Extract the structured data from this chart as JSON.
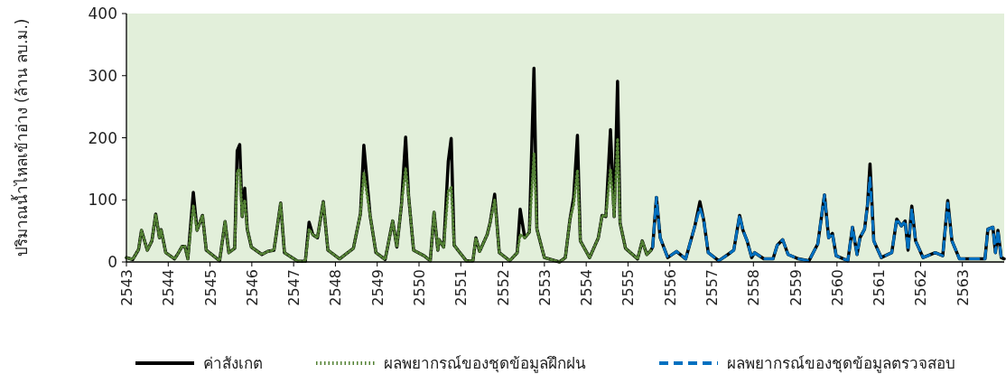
{
  "chart_data": {
    "type": "line",
    "ylabel": "ปริมาณน้ำไหลเข้าอ่าง (ล้าน ลบ.ม.)",
    "xlim": [
      2543,
      2564
    ],
    "xticks": [
      2543,
      2544,
      2545,
      2546,
      2547,
      2548,
      2549,
      2550,
      2551,
      2552,
      2553,
      2554,
      2555,
      2556,
      2557,
      2558,
      2559,
      2560,
      2561,
      2562,
      2563
    ],
    "ylim": [
      0,
      400
    ],
    "yticks": [
      0,
      100,
      200,
      300,
      400
    ],
    "grid": false,
    "legend": "bottom",
    "marker": "none",
    "series": [
      {
        "name": "ค่าสังเกต",
        "color": "#000000",
        "line_style": "solid",
        "x": [
          2543.0,
          2543.15,
          2543.29,
          2543.36,
          2543.5,
          2543.61,
          2543.7,
          2543.79,
          2543.83,
          2543.94,
          2544.15,
          2544.22,
          2544.33,
          2544.4,
          2544.47,
          2544.6,
          2544.69,
          2544.82,
          2544.91,
          2545.23,
          2545.36,
          2545.45,
          2545.59,
          2545.65,
          2545.71,
          2545.77,
          2545.83,
          2545.89,
          2545.99,
          2546.24,
          2546.38,
          2546.53,
          2546.69,
          2546.78,
          2547.1,
          2547.28,
          2547.37,
          2547.46,
          2547.57,
          2547.71,
          2547.82,
          2548.1,
          2548.43,
          2548.6,
          2548.68,
          2548.83,
          2548.97,
          2549.19,
          2549.37,
          2549.47,
          2549.58,
          2549.68,
          2549.75,
          2549.87,
          2550.12,
          2550.27,
          2550.36,
          2550.45,
          2550.48,
          2550.59,
          2550.7,
          2550.77,
          2550.84,
          2551.13,
          2551.29,
          2551.36,
          2551.45,
          2551.63,
          2551.7,
          2551.81,
          2551.92,
          2552.17,
          2552.35,
          2552.42,
          2552.53,
          2552.64,
          2552.75,
          2552.82,
          2553.0,
          2553.36,
          2553.5,
          2553.61,
          2553.7,
          2553.79,
          2553.86,
          2554.08,
          2554.29,
          2554.38,
          2554.47,
          2554.58,
          2554.67,
          2554.75,
          2554.81,
          2554.94,
          2555.23,
          2555.34,
          2555.45,
          2555.55,
          2555.59,
          2555.68,
          2555.77,
          2555.95,
          2556.16,
          2556.38,
          2556.6,
          2556.72,
          2556.81,
          2556.92,
          2557.17,
          2557.39,
          2557.53,
          2557.67,
          2557.75,
          2557.85,
          2557.96,
          2558.03,
          2558.25,
          2558.47,
          2558.57,
          2558.7,
          2558.83,
          2559.08,
          2559.33,
          2559.54,
          2559.7,
          2559.8,
          2559.89,
          2559.98,
          2560.26,
          2560.37,
          2560.48,
          2560.55,
          2560.66,
          2560.73,
          2560.79,
          2560.88,
          2561.06,
          2561.31,
          2561.43,
          2561.54,
          2561.63,
          2561.7,
          2561.79,
          2561.88,
          2562.06,
          2562.35,
          2562.53,
          2562.65,
          2562.75,
          2562.93,
          2563.29,
          2563.54,
          2563.61,
          2563.73,
          2563.79,
          2563.85,
          2563.93,
          2564.0
        ],
        "values": [
          7,
          4,
          20,
          51,
          19,
          34,
          77,
          39,
          52,
          15,
          5,
          12,
          25,
          25,
          5,
          112,
          51,
          75,
          19,
          2,
          65,
          15,
          22,
          179,
          189,
          73,
          119,
          53,
          24,
          12,
          17,
          19,
          95,
          15,
          1,
          1,
          64,
          44,
          39,
          97,
          19,
          5,
          22,
          78,
          188,
          75,
          15,
          4,
          66,
          24,
          92,
          201,
          107,
          19,
          10,
          2,
          80,
          19,
          36,
          24,
          162,
          199,
          27,
          2,
          2,
          39,
          17,
          44,
          63,
          109,
          15,
          2,
          15,
          85,
          39,
          48,
          312,
          53,
          7,
          0,
          7,
          68,
          104,
          204,
          34,
          7,
          39,
          75,
          73,
          213,
          73,
          291,
          63,
          22,
          5,
          34,
          12,
          19,
          24,
          104,
          39,
          7,
          17,
          5,
          58,
          97,
          68,
          15,
          2,
          12,
          19,
          75,
          51,
          34,
          7,
          15,
          5,
          5,
          27,
          36,
          12,
          5,
          2,
          29,
          108,
          39,
          46,
          10,
          2,
          56,
          12,
          39,
          53,
          92,
          158,
          34,
          7,
          15,
          69,
          58,
          66,
          19,
          90,
          34,
          7,
          15,
          10,
          99,
          34,
          5,
          5,
          5,
          53,
          56,
          15,
          51,
          7,
          5
        ]
      },
      {
        "name": "ผลพยากรณ์ของชุดข้อมูลฝึกฝน",
        "color": "#548235",
        "line_style": "dotted",
        "x": [
          2543.0,
          2543.15,
          2543.29,
          2543.36,
          2543.5,
          2543.61,
          2543.7,
          2543.79,
          2543.83,
          2543.94,
          2544.15,
          2544.22,
          2544.33,
          2544.4,
          2544.47,
          2544.6,
          2544.69,
          2544.82,
          2544.91,
          2545.23,
          2545.36,
          2545.45,
          2545.59,
          2545.65,
          2545.71,
          2545.77,
          2545.83,
          2545.89,
          2545.99,
          2546.24,
          2546.38,
          2546.53,
          2546.69,
          2546.78,
          2547.1,
          2547.28,
          2547.37,
          2547.46,
          2547.57,
          2547.71,
          2547.82,
          2548.1,
          2548.43,
          2548.6,
          2548.68,
          2548.83,
          2548.97,
          2549.19,
          2549.37,
          2549.47,
          2549.58,
          2549.68,
          2549.75,
          2549.87,
          2550.12,
          2550.27,
          2550.36,
          2550.45,
          2550.48,
          2550.59,
          2550.7,
          2550.77,
          2550.84,
          2551.13,
          2551.29,
          2551.36,
          2551.45,
          2551.63,
          2551.7,
          2551.81,
          2551.92,
          2552.17,
          2552.35,
          2552.42,
          2552.53,
          2552.64,
          2552.75,
          2552.82,
          2553.0,
          2553.36,
          2553.5,
          2553.61,
          2553.7,
          2553.79,
          2553.86,
          2554.08,
          2554.29,
          2554.38,
          2554.47,
          2554.58,
          2554.67,
          2554.75,
          2554.81,
          2554.94,
          2555.23,
          2555.34,
          2555.45,
          2555.55
        ],
        "values": [
          7,
          4,
          20,
          51,
          19,
          34,
          77,
          39,
          52,
          15,
          5,
          12,
          25,
          25,
          5,
          92,
          51,
          75,
          19,
          2,
          65,
          15,
          22,
          145,
          150,
          73,
          100,
          53,
          24,
          12,
          17,
          19,
          95,
          15,
          1,
          1,
          53,
          44,
          39,
          97,
          19,
          5,
          22,
          78,
          143,
          75,
          15,
          4,
          66,
          24,
          92,
          150,
          107,
          19,
          10,
          2,
          80,
          19,
          36,
          24,
          114,
          120,
          27,
          2,
          2,
          39,
          17,
          44,
          63,
          100,
          15,
          2,
          15,
          44,
          39,
          48,
          175,
          53,
          7,
          0,
          7,
          68,
          92,
          148,
          34,
          7,
          39,
          75,
          73,
          150,
          73,
          199,
          63,
          22,
          5,
          34,
          12,
          19
        ]
      },
      {
        "name": "ผลพยากรณ์ของชุดข้อมูลตรวจสอบ",
        "color": "#0070c0",
        "line_style": "dashed",
        "x": [
          2555.59,
          2555.68,
          2555.77,
          2555.95,
          2556.16,
          2556.38,
          2556.6,
          2556.72,
          2556.81,
          2556.92,
          2557.17,
          2557.39,
          2557.53,
          2557.67,
          2557.75,
          2557.85,
          2557.96,
          2558.03,
          2558.25,
          2558.47,
          2558.57,
          2558.7,
          2558.83,
          2559.08,
          2559.33,
          2559.54,
          2559.7,
          2559.8,
          2559.89,
          2559.98,
          2560.26,
          2560.37,
          2560.48,
          2560.55,
          2560.66,
          2560.73,
          2560.79,
          2560.88,
          2561.06,
          2561.31,
          2561.43,
          2561.54,
          2561.63,
          2561.7,
          2561.79,
          2561.88,
          2562.06,
          2562.35,
          2562.53,
          2562.65,
          2562.75,
          2562.93,
          2563.29,
          2563.54,
          2563.61,
          2563.73,
          2563.79,
          2563.85,
          2563.93,
          2564.0
        ],
        "values": [
          24,
          104,
          39,
          7,
          17,
          5,
          58,
          87,
          68,
          15,
          2,
          12,
          19,
          75,
          51,
          34,
          7,
          15,
          5,
          5,
          27,
          36,
          12,
          5,
          2,
          29,
          108,
          39,
          46,
          10,
          2,
          56,
          12,
          39,
          53,
          92,
          136,
          34,
          7,
          15,
          69,
          58,
          66,
          19,
          85,
          34,
          7,
          15,
          10,
          95,
          34,
          5,
          5,
          5,
          53,
          56,
          15,
          51,
          7,
          5
        ]
      }
    ]
  }
}
